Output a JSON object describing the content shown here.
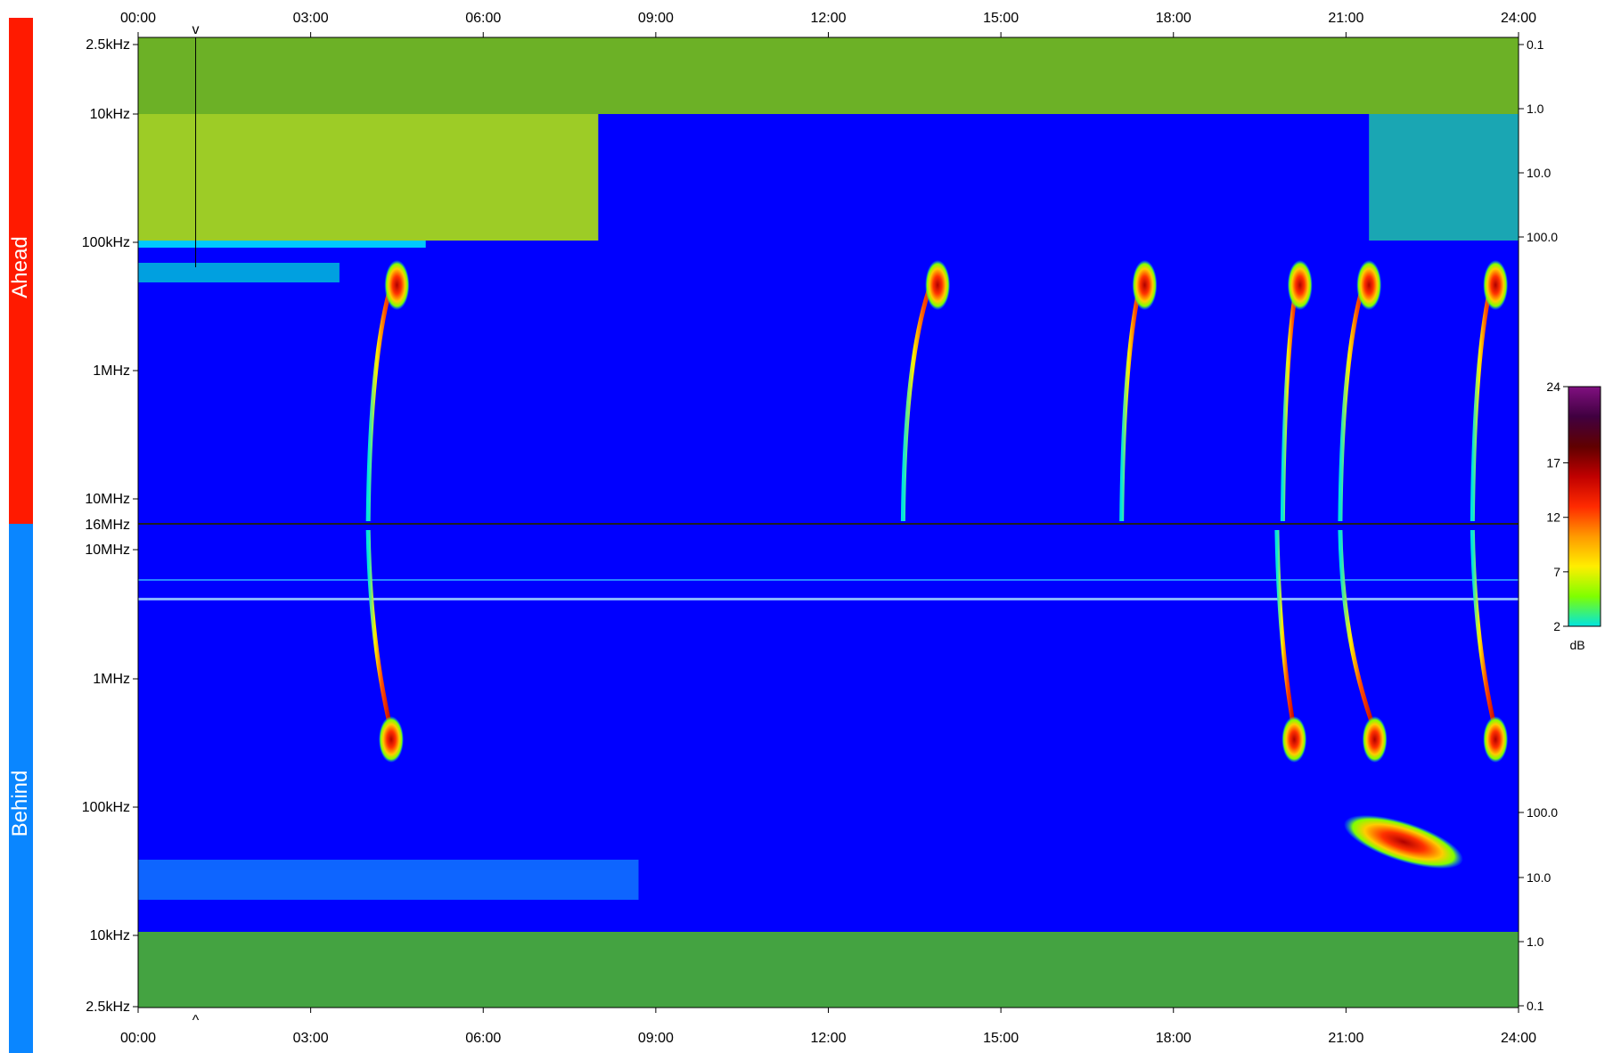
{
  "chart_data": {
    "type": "heatmap",
    "title": "",
    "panels": [
      {
        "name": "Ahead",
        "bar_color": "#ff1a00",
        "y_ticks": [
          "2.5kHz",
          "10kHz",
          "100kHz",
          "1MHz",
          "10MHz"
        ],
        "right_ticks": [
          "0.1",
          "1.0",
          "10.0",
          "100.0"
        ]
      },
      {
        "name": "Behind",
        "bar_color": "#0a86ff",
        "y_ticks": [
          "10MHz",
          "1MHz",
          "100kHz",
          "10kHz",
          "2.5kHz"
        ],
        "right_ticks": [
          "100.0",
          "10.0",
          "1.0",
          "0.1"
        ]
      }
    ],
    "separator_label": "16MHz",
    "x_ticks": [
      "00:00",
      "03:00",
      "06:00",
      "09:00",
      "12:00",
      "15:00",
      "18:00",
      "21:00",
      "24:00"
    ],
    "x_range_hours": [
      0,
      24
    ],
    "marker_time_hours": 1.0,
    "colorbar": {
      "ticks": [
        "24",
        "17",
        "12",
        "7",
        "2"
      ],
      "unit": "dB",
      "range": [
        2,
        24
      ],
      "stops": [
        "#00e5e0",
        "#7fff00",
        "#ffee00",
        "#ff9a00",
        "#ff2a00",
        "#c00000",
        "#600000",
        "#400040",
        "#801080"
      ]
    },
    "background_color": "#0000ff",
    "bursts": [
      {
        "panel": "ahead",
        "t_start": 4.0,
        "t_peak": 4.5,
        "note": "type III burst"
      },
      {
        "panel": "ahead",
        "t_start": 13.3,
        "t_peak": 13.9,
        "note": "type III burst"
      },
      {
        "panel": "ahead",
        "t_start": 17.1,
        "t_peak": 17.5,
        "note": "type III burst"
      },
      {
        "panel": "ahead",
        "t_start": 19.9,
        "t_peak": 20.2,
        "note": "type III burst"
      },
      {
        "panel": "ahead",
        "t_start": 20.9,
        "t_peak": 21.4,
        "note": "type III burst"
      },
      {
        "panel": "ahead",
        "t_start": 23.2,
        "t_peak": 23.6,
        "note": "type III burst"
      },
      {
        "panel": "behind",
        "t_start": 4.0,
        "t_peak": 4.4,
        "note": "type III burst"
      },
      {
        "panel": "behind",
        "t_start": 19.8,
        "t_peak": 20.1,
        "note": "type III burst"
      },
      {
        "panel": "behind",
        "t_start": 20.9,
        "t_peak": 21.5,
        "note": "type III burst"
      },
      {
        "panel": "behind",
        "t_start": 23.2,
        "t_peak": 23.6,
        "note": "type III burst"
      }
    ]
  }
}
